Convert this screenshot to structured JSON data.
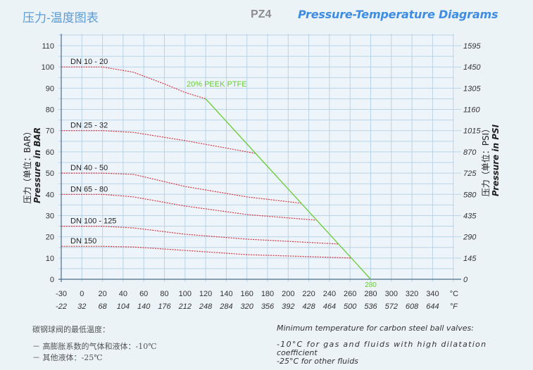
{
  "header": {
    "title_cn": "压力-温度图表",
    "code": "PZ4",
    "title_en": "Pressure-Temperature Diagrams"
  },
  "colors": {
    "grid": "#b9d3e6",
    "axis": "#4a6d8c",
    "curve": "#d9333f",
    "ptfe": "#66cc33",
    "title": "#3f8de3"
  },
  "chart_data": {
    "type": "line",
    "title": "Pressure-Temperature Diagrams",
    "xlabel": "°C / °F",
    "ylabel_left_cn": "压力（单位：BAR）",
    "ylabel_left_en": "Pressure in BAR",
    "ylabel_right_cn": "压力（单位：PSI）",
    "ylabel_right_en": "Pressure in PSI",
    "x_ticks_c": [
      -30,
      0,
      20,
      40,
      60,
      80,
      100,
      120,
      140,
      160,
      180,
      200,
      220,
      240,
      260,
      280,
      300,
      320,
      340
    ],
    "x_ticks_f": [
      -22,
      32,
      68,
      104,
      140,
      176,
      212,
      248,
      284,
      320,
      356,
      392,
      428,
      464,
      500,
      536,
      572,
      608,
      644
    ],
    "x_unit_c": "°C",
    "x_unit_f": "°F",
    "y_ticks_bar": [
      0,
      10,
      20,
      30,
      40,
      50,
      60,
      70,
      80,
      90,
      100,
      110
    ],
    "y_ticks_psi": [
      0,
      145,
      290,
      435,
      580,
      725,
      870,
      1015,
      1160,
      1305,
      1450,
      1595
    ],
    "ylim": [
      0,
      115
    ],
    "grid": true,
    "series": [
      {
        "name": "DN 10 - 20",
        "points": [
          [
            -30,
            100
          ],
          [
            20,
            100
          ],
          [
            50,
            97.5
          ],
          [
            80,
            92
          ],
          [
            100,
            88
          ],
          [
            120,
            85
          ]
        ]
      },
      {
        "name": "DN 25 - 32",
        "points": [
          [
            -30,
            70
          ],
          [
            20,
            70
          ],
          [
            50,
            69.2
          ],
          [
            100,
            65.3
          ],
          [
            168,
            59.3
          ]
        ]
      },
      {
        "name": "DN 40 - 50",
        "points": [
          [
            -30,
            50
          ],
          [
            20,
            50
          ],
          [
            50,
            49.4
          ],
          [
            100,
            43.7
          ],
          [
            160,
            38.8
          ],
          [
            213,
            35.8
          ]
        ]
      },
      {
        "name": "DN 65 - 80",
        "points": [
          [
            -30,
            40
          ],
          [
            20,
            40
          ],
          [
            50,
            38.8
          ],
          [
            100,
            34.5
          ],
          [
            160,
            30.5
          ],
          [
            228,
            27.8
          ]
        ]
      },
      {
        "name": "DN 100 - 125",
        "points": [
          [
            -30,
            25
          ],
          [
            20,
            25
          ],
          [
            50,
            24.2
          ],
          [
            100,
            21.2
          ],
          [
            160,
            18.9
          ],
          [
            249,
            16.6
          ]
        ]
      },
      {
        "name": "DN 150",
        "points": [
          [
            -30,
            15.5
          ],
          [
            20,
            15.5
          ],
          [
            50,
            15.2
          ],
          [
            100,
            13.6
          ],
          [
            160,
            11.6
          ],
          [
            261,
            10
          ]
        ]
      }
    ],
    "limit_line": {
      "name": "20% PEEK PTFE",
      "points": [
        [
          120,
          85
        ],
        [
          280,
          0
        ]
      ],
      "end_label": "280"
    }
  },
  "footer": {
    "cn_title": "碳钢球阀的最低温度：",
    "cn_line1": "－ 高膨胀系数的气体和液体：-10℃",
    "cn_line2": "－ 其他液体：-25℃",
    "en_title": "Minimum temperature for carbon steel ball valves:",
    "en_line1": "-10°C for gas and fluids with high dilatation",
    "en_line1b": "coefficient",
    "en_line2": "-25°C for other fluids"
  }
}
